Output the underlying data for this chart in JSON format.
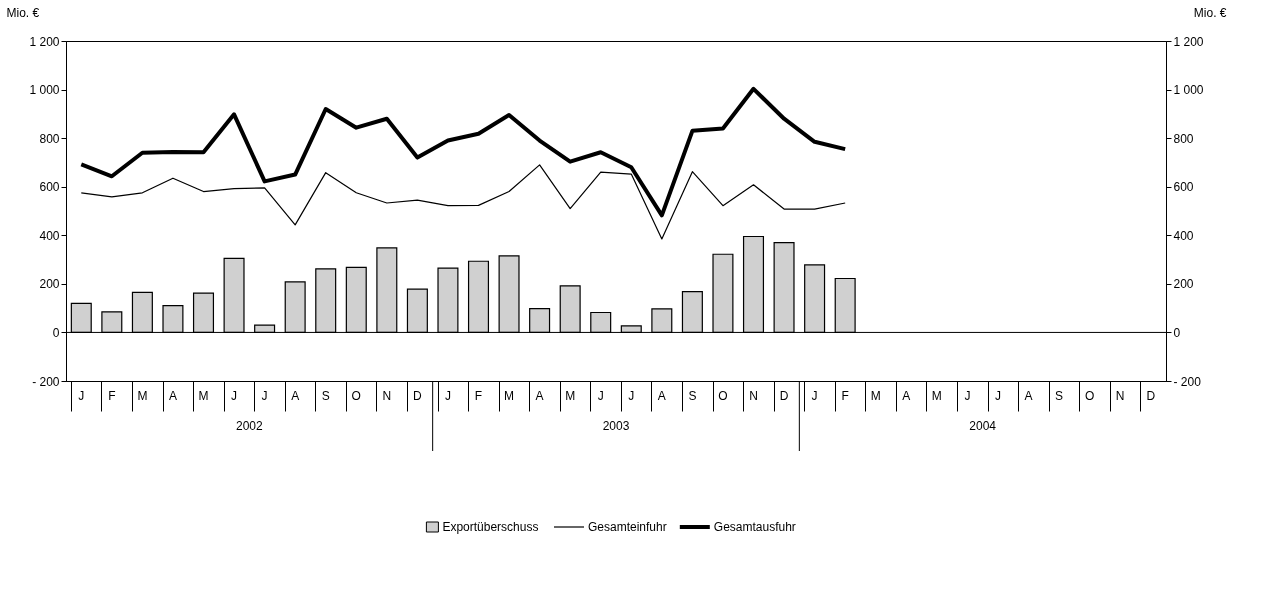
{
  "chart_data": {
    "type": "bar",
    "categories": [
      "J",
      "F",
      "M",
      "A",
      "M",
      "J",
      "J",
      "A",
      "S",
      "O",
      "N",
      "D",
      "J",
      "F",
      "M",
      "A",
      "M",
      "J",
      "J",
      "A",
      "S",
      "O",
      "N",
      "D",
      "J",
      "F",
      "M",
      "A",
      "M",
      "J",
      "J",
      "A",
      "S",
      "O",
      "N",
      "D"
    ],
    "series": [
      {
        "name": "Exportüberschuss",
        "color": "#d0d0d0",
        "values": [
          120,
          85,
          165,
          110,
          162,
          305,
          30,
          208,
          262,
          268,
          348,
          178,
          265,
          293,
          315,
          98,
          192,
          82,
          27,
          97,
          168,
          322,
          395,
          370,
          278,
          222,
          null,
          null,
          null,
          null,
          null,
          null,
          null,
          null,
          null,
          null
        ]
      },
      {
        "name": "Gesamteinfuhr",
        "type": "line",
        "color": "#000000",
        "values": [
          575,
          558,
          575,
          635,
          580,
          592,
          595,
          443,
          658,
          575,
          533,
          545,
          522,
          523,
          580,
          690,
          510,
          660,
          652,
          385,
          662,
          522,
          608,
          508,
          508,
          533,
          null,
          null,
          null,
          null,
          null,
          null,
          null,
          null,
          null,
          null
        ]
      },
      {
        "name": "Gesamtausfuhr",
        "type": "line",
        "color": "#000000",
        "values": [
          692,
          643,
          740,
          743,
          742,
          898,
          622,
          650,
          920,
          843,
          880,
          720,
          790,
          818,
          895,
          790,
          703,
          742,
          680,
          482,
          830,
          840,
          1003,
          880,
          785,
          755,
          null,
          null,
          null,
          null,
          null,
          null,
          null,
          null,
          null,
          null
        ]
      }
    ],
    "ylabel": "Mio. €",
    "y2label": "Mio. €",
    "ylim": [
      -200,
      1200
    ],
    "yticks": [
      {
        "value": -200,
        "label": "- 200"
      },
      0,
      200,
      400,
      600,
      800,
      {
        "value": 1000,
        "label": "1 000"
      },
      {
        "value": 1200,
        "label": "1 200"
      }
    ],
    "y2lim": [
      -200,
      1200
    ],
    "y2ticks": [
      {
        "value": -200,
        "label": "- 200"
      },
      0,
      200,
      400,
      600,
      800,
      {
        "value": 1000,
        "label": "1 000"
      },
      {
        "value": 1200,
        "label": "1 200"
      }
    ],
    "annotations": [
      "2002",
      "2003",
      "2004"
    ],
    "ref_lines": [
      {
        "axis": "y",
        "value": 0
      }
    ],
    "legend": "bottom",
    "grid": false
  }
}
